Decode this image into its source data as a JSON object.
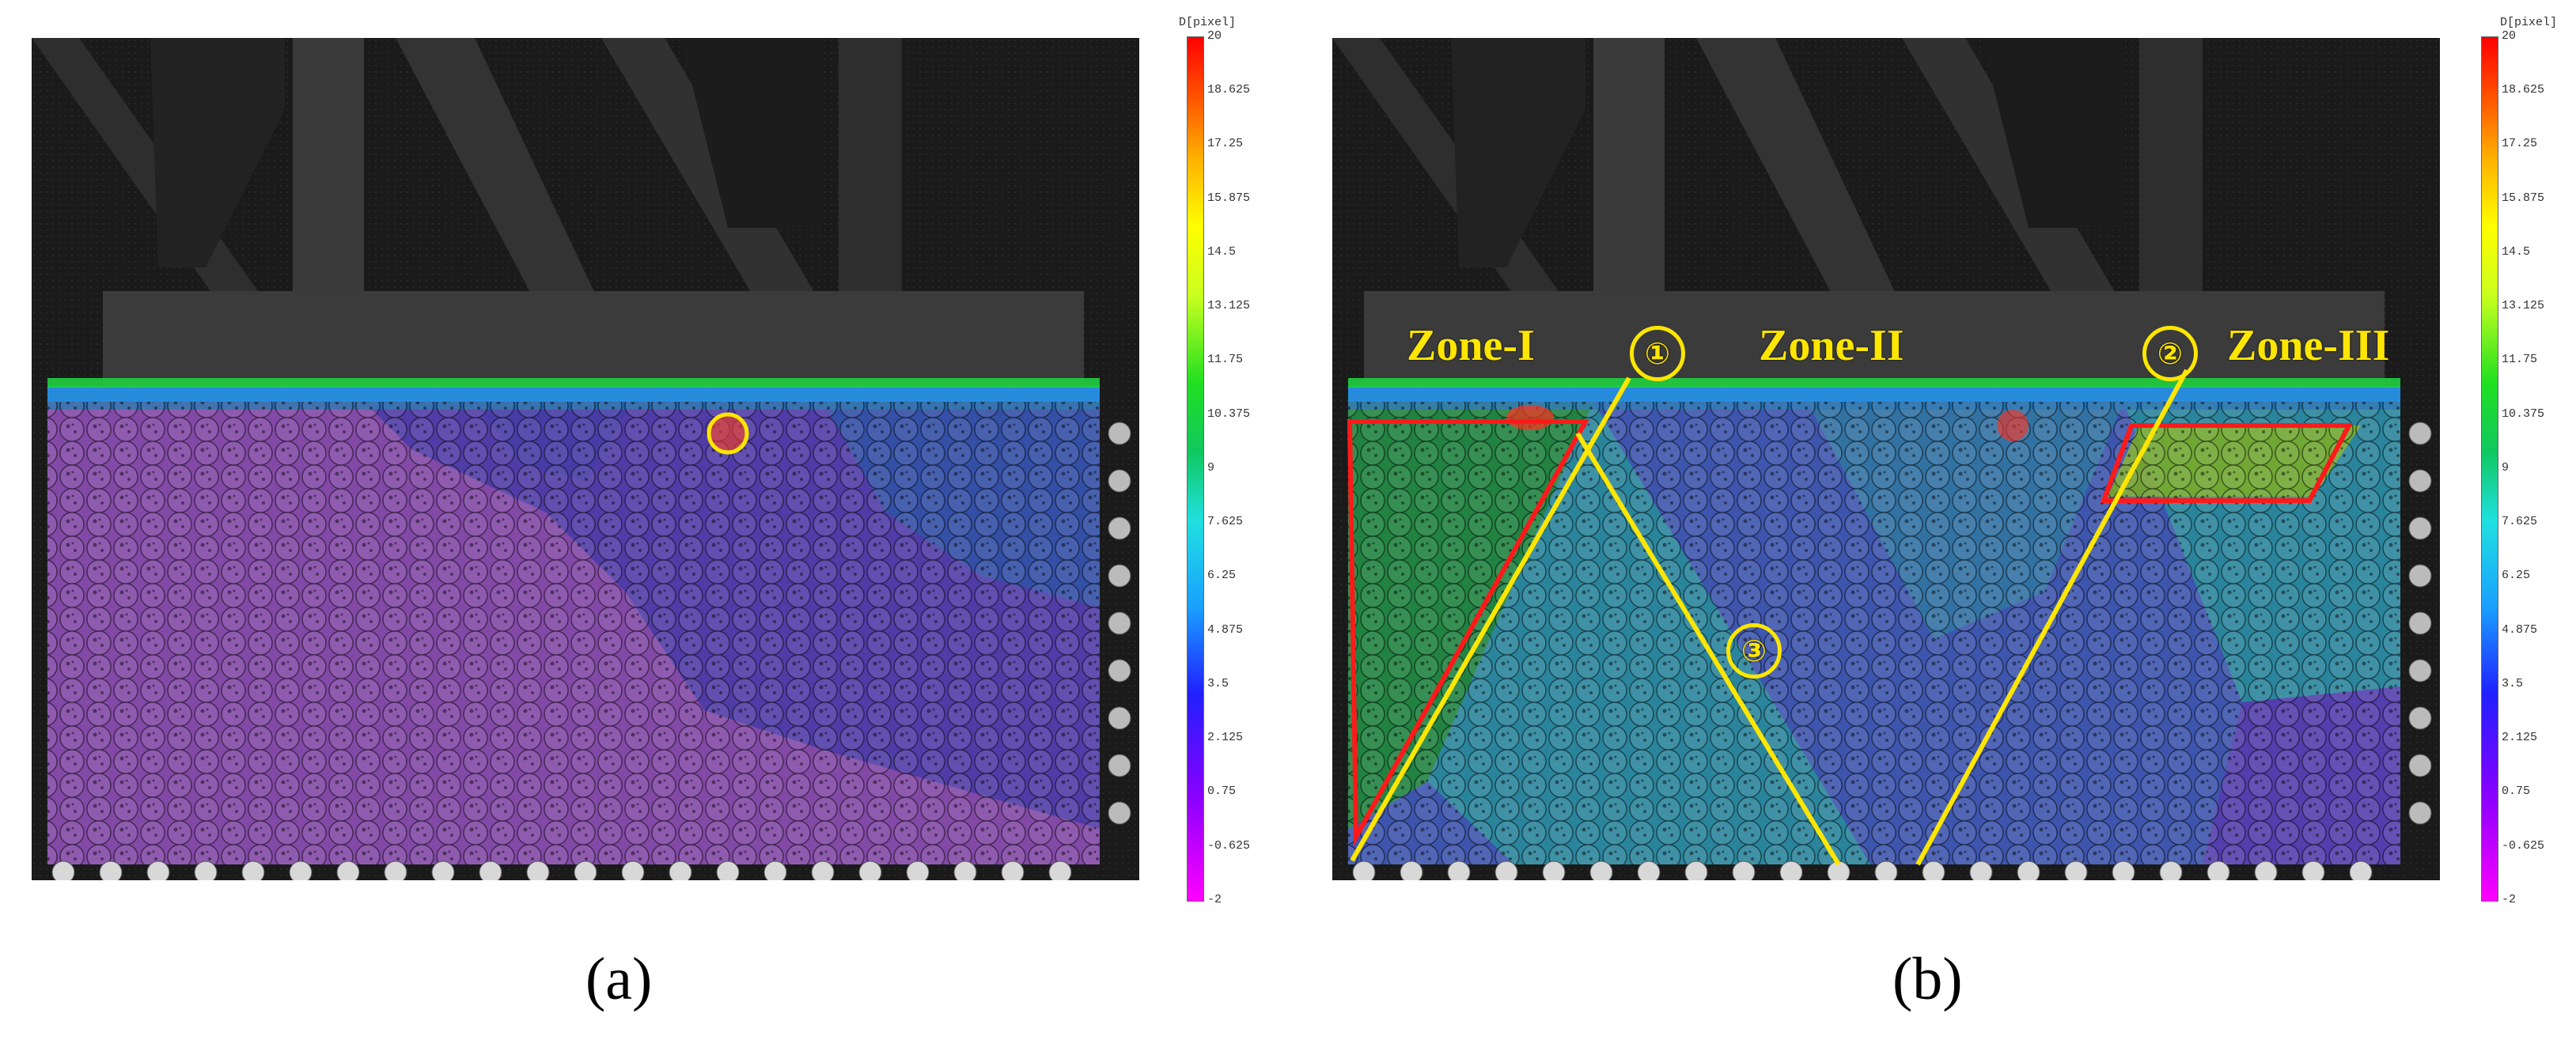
{
  "panels": [
    {
      "caption": "(a)",
      "caption_letter": "a",
      "description": "DIC displacement field overlaid on particle assembly under strip footing; highlighted yellow circle near the footing"
    },
    {
      "caption": "(b)",
      "caption_letter": "b",
      "zones": [
        "Zone-I",
        "Zone-II",
        "Zone-III"
      ],
      "markers": [
        "①",
        "②",
        "③"
      ]
    }
  ],
  "colorbar": {
    "title": "D[pixel]",
    "ticks": [
      "20",
      "18.625",
      "17.25",
      "15.875",
      "14.5",
      "13.125",
      "11.75",
      "10.375",
      "9",
      "7.625",
      "6.25",
      "4.875",
      "3.5",
      "2.125",
      "0.75",
      "-0.625",
      "-2"
    ],
    "min": -2,
    "max": 20,
    "colors": [
      "#ff00ff",
      "#8a00ff",
      "#2020ff",
      "#1aa0ff",
      "#20e0e0",
      "#10c860",
      "#20e020",
      "#c8ff20",
      "#ffff00",
      "#ffb000",
      "#ff6000",
      "#ff0000"
    ]
  },
  "overlay_colors": {
    "magenta": "#c860ff",
    "violet": "#8060ff",
    "blue": "#5a7dff",
    "cyan": "#3ec4e6",
    "green": "#30d050",
    "yellow_green": "#b8ff30",
    "annotation_yellow": "#ffe600",
    "annotation_red": "#ff1a1a"
  }
}
